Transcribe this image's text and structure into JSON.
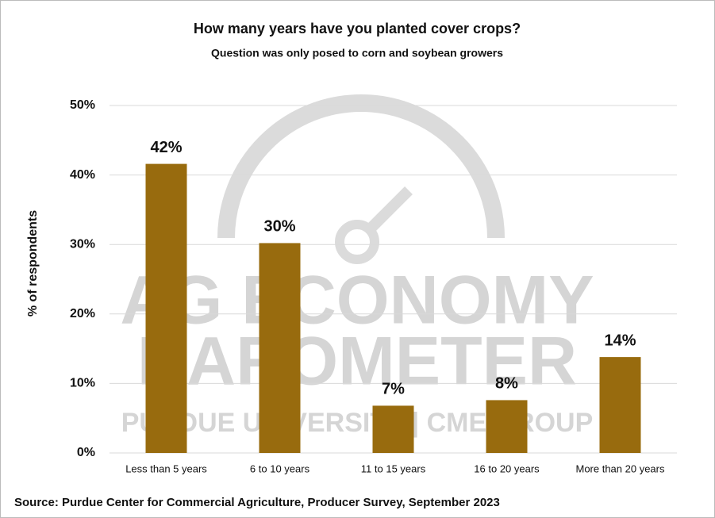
{
  "chart_data": {
    "type": "bar",
    "title": "How many years have you planted cover crops?",
    "subtitle": "Question was only posed to corn and soybean growers",
    "y_label": "% of respondents",
    "categories": [
      "Less than 5 years",
      "6 to 10 years",
      "11 to 15 years",
      "16 to 20 years",
      "More than 20 years"
    ],
    "values": [
      41.6,
      30.2,
      6.8,
      7.6,
      13.8
    ],
    "value_labels": [
      "42%",
      "30%",
      "7%",
      "8%",
      "14%"
    ],
    "color": "#986b0e",
    "ylim": [
      0,
      50
    ],
    "yticks": [
      {
        "value": 0,
        "label": "0%"
      },
      {
        "value": 10,
        "label": "10%"
      },
      {
        "value": 20,
        "label": "20%"
      },
      {
        "value": 30,
        "label": "30%"
      },
      {
        "value": 40,
        "label": "40%"
      },
      {
        "value": 50,
        "label": "50%"
      }
    ],
    "grid": true,
    "source": "Source: Purdue Center for Commercial Agriculture, Producer Survey, September 2023",
    "watermark": [
      "AG ECONOMY",
      "BAROMETER",
      "PURDUE UNIVERSITY | CME GROUP"
    ]
  }
}
